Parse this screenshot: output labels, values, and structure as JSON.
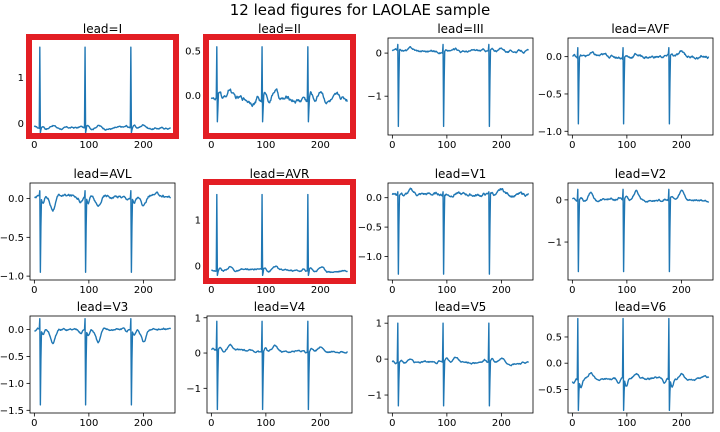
{
  "title": "12 lead figures for LAOLAE sample",
  "colors": {
    "line": "#1f77b4",
    "highlight": "#e31e24",
    "axis": "#000000"
  },
  "chart_data": [
    {
      "type": "line",
      "title": "lead=I",
      "highlighted": true,
      "xlim": [
        -8,
        258
      ],
      "ylim": [
        -0.25,
        1.85
      ],
      "xticks": [
        0,
        100,
        200
      ],
      "yticks": [
        {
          "v": 0,
          "label": "0"
        },
        {
          "v": 1,
          "label": "1"
        }
      ],
      "baseline": -0.1,
      "beats": [
        10,
        93,
        177
      ],
      "peak": 1.65,
      "trough": -0.2,
      "bumps": [
        0.05,
        0.08
      ],
      "noise": 0.03
    },
    {
      "type": "line",
      "title": "lead=II",
      "highlighted": true,
      "xlim": [
        -8,
        258
      ],
      "ylim": [
        -0.45,
        0.65
      ],
      "xticks": [
        0,
        100,
        200
      ],
      "yticks": [
        {
          "v": 0,
          "label": "0.0"
        },
        {
          "v": 0.5,
          "label": "0.5"
        }
      ],
      "baseline": -0.05,
      "beats": [
        10,
        93,
        177
      ],
      "peak": 0.55,
      "trough": -0.3,
      "bumps": [
        0.08,
        0.12
      ],
      "noise": 0.04
    },
    {
      "type": "line",
      "title": "lead=III",
      "highlighted": false,
      "xlim": [
        -8,
        258
      ],
      "ylim": [
        -1.9,
        0.35
      ],
      "xticks": [
        0,
        100,
        200
      ],
      "yticks": [
        {
          "v": 0,
          "label": "0"
        },
        {
          "v": -1,
          "label": "−1"
        }
      ],
      "baseline": 0.05,
      "beats": [
        10,
        93,
        177
      ],
      "peak": 0.2,
      "trough": -1.7,
      "bumps": [
        0.02,
        0.05
      ],
      "noise": 0.04
    },
    {
      "type": "line",
      "title": "lead=AVF",
      "highlighted": false,
      "xlim": [
        -8,
        258
      ],
      "ylim": [
        -1.05,
        0.25
      ],
      "xticks": [
        0,
        100,
        200
      ],
      "yticks": [
        {
          "v": 0,
          "label": "0.0"
        },
        {
          "v": -0.5,
          "label": "−0.5"
        },
        {
          "v": -1,
          "label": "−1.0"
        }
      ],
      "baseline": 0.0,
      "beats": [
        10,
        93,
        177
      ],
      "peak": 0.12,
      "trough": -0.9,
      "bumps": [
        0.02,
        0.04
      ],
      "noise": 0.03
    },
    {
      "type": "line",
      "title": "lead=AVL",
      "highlighted": false,
      "xlim": [
        -8,
        258
      ],
      "ylim": [
        -1.05,
        0.2
      ],
      "xticks": [
        0,
        100,
        200
      ],
      "yticks": [
        {
          "v": 0,
          "label": "0.0"
        },
        {
          "v": -0.5,
          "label": "−0.5"
        },
        {
          "v": -1,
          "label": "−1.0"
        }
      ],
      "baseline": 0.03,
      "beats": [
        10,
        93,
        177
      ],
      "peak": 0.1,
      "trough": -0.95,
      "bumps": [
        -0.08,
        -0.15
      ],
      "noise": 0.03
    },
    {
      "type": "line",
      "title": "lead=AVR",
      "highlighted": true,
      "xlim": [
        -8,
        258
      ],
      "ylim": [
        -0.3,
        1.8
      ],
      "xticks": [
        0,
        100,
        200
      ],
      "yticks": [
        {
          "v": 0,
          "label": "0"
        },
        {
          "v": 1,
          "label": "1"
        }
      ],
      "baseline": -0.1,
      "beats": [
        10,
        93,
        177
      ],
      "peak": 1.55,
      "trough": -0.2,
      "bumps": [
        0.06,
        0.1
      ],
      "noise": 0.03
    },
    {
      "type": "line",
      "title": "lead=V1",
      "highlighted": false,
      "xlim": [
        -8,
        258
      ],
      "ylim": [
        -1.4,
        0.25
      ],
      "xticks": [
        0,
        100,
        200
      ],
      "yticks": [
        {
          "v": 0,
          "label": "0.0"
        },
        {
          "v": -0.5,
          "label": "−0.5"
        },
        {
          "v": -1,
          "label": "−1.0"
        }
      ],
      "baseline": 0.05,
      "beats": [
        10,
        93,
        177
      ],
      "peak": 0.1,
      "trough": -1.3,
      "bumps": [
        0.03,
        0.06
      ],
      "noise": 0.04
    },
    {
      "type": "line",
      "title": "lead=V2",
      "highlighted": false,
      "xlim": [
        -8,
        258
      ],
      "ylim": [
        -1.9,
        0.4
      ],
      "xticks": [
        0,
        100,
        200
      ],
      "yticks": [
        {
          "v": 0,
          "label": "0"
        },
        {
          "v": -1,
          "label": "−1"
        }
      ],
      "baseline": 0.0,
      "beats": [
        10,
        93,
        177
      ],
      "peak": 0.25,
      "trough": -1.7,
      "bumps": [
        0.08,
        0.2
      ],
      "noise": 0.04
    },
    {
      "type": "line",
      "title": "lead=V3",
      "highlighted": false,
      "xlim": [
        -8,
        258
      ],
      "ylim": [
        -1.55,
        0.25
      ],
      "xticks": [
        0,
        100,
        200
      ],
      "yticks": [
        {
          "v": 0,
          "label": "0.0"
        },
        {
          "v": -0.5,
          "label": "−0.5"
        },
        {
          "v": -1,
          "label": "−1.0"
        },
        {
          "v": -1.5,
          "label": "−1.5"
        }
      ],
      "baseline": 0.0,
      "beats": [
        10,
        93,
        177
      ],
      "peak": 0.2,
      "trough": -1.4,
      "bumps": [
        -0.1,
        -0.25
      ],
      "noise": 0.03
    },
    {
      "type": "line",
      "title": "lead=V4",
      "highlighted": false,
      "xlim": [
        -8,
        258
      ],
      "ylim": [
        -1.7,
        1.05
      ],
      "xticks": [
        0,
        100,
        200
      ],
      "yticks": [
        {
          "v": 1,
          "label": "1"
        },
        {
          "v": 0,
          "label": "0"
        },
        {
          "v": -1,
          "label": "−1"
        }
      ],
      "baseline": 0.05,
      "beats": [
        10,
        93,
        177
      ],
      "peak": 0.9,
      "trough": -1.6,
      "bumps": [
        0.1,
        0.15
      ],
      "noise": 0.04
    },
    {
      "type": "line",
      "title": "lead=V5",
      "highlighted": false,
      "xlim": [
        -8,
        258
      ],
      "ylim": [
        -1.5,
        1.2
      ],
      "xticks": [
        0,
        100,
        200
      ],
      "yticks": [
        {
          "v": 1,
          "label": "1"
        },
        {
          "v": 0,
          "label": "0"
        },
        {
          "v": -1,
          "label": "−1"
        }
      ],
      "baseline": -0.1,
      "beats": [
        10,
        93,
        177
      ],
      "peak": 1.0,
      "trough": -1.3,
      "bumps": [
        0.1,
        0.12
      ],
      "noise": 0.04
    },
    {
      "type": "line",
      "title": "lead=V6",
      "highlighted": false,
      "xlim": [
        -8,
        258
      ],
      "ylim": [
        -0.95,
        0.9
      ],
      "xticks": [
        0,
        100,
        200
      ],
      "yticks": [
        {
          "v": 0.5,
          "label": "0.5"
        },
        {
          "v": 0,
          "label": "0.0"
        },
        {
          "v": -0.5,
          "label": "−0.5"
        }
      ],
      "baseline": -0.3,
      "beats": [
        10,
        93,
        177
      ],
      "peak": 0.85,
      "trough": -0.9,
      "bumps": [
        -0.15,
        0.1
      ],
      "noise": 0.03
    }
  ]
}
